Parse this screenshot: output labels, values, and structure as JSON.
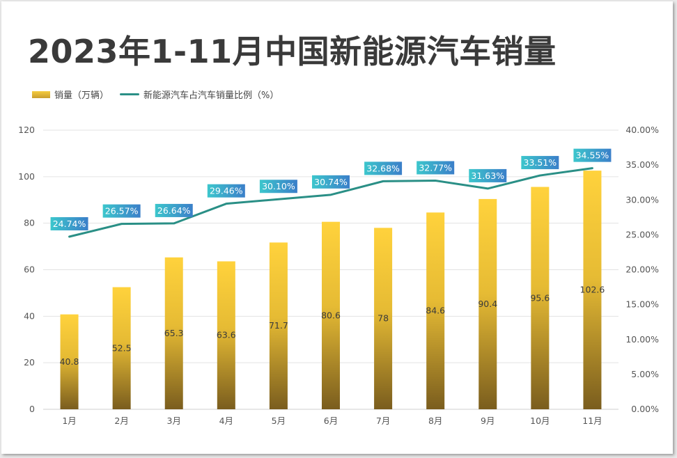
{
  "title": "2023年1-11月中国新能源汽车销量",
  "colors": {
    "bar_top": "#ffd23c",
    "bar_bottom": "#7a5d1e",
    "line": "#2a8f86",
    "label_bg_left": "#3cc6cc",
    "label_bg_right": "#3b7fc9",
    "grid": "#e3e3e3",
    "axis_text": "#555555"
  },
  "chart_data": {
    "type": "bar+line",
    "categories": [
      "1月",
      "2月",
      "3月",
      "4月",
      "5月",
      "6月",
      "7月",
      "8月",
      "9月",
      "10月",
      "11月"
    ],
    "series": [
      {
        "name": "销量（万辆）",
        "type": "bar",
        "axis": "left",
        "values": [
          40.8,
          52.5,
          65.3,
          63.6,
          71.7,
          80.6,
          78,
          84.6,
          90.4,
          95.6,
          102.6
        ],
        "labels": [
          "40.8",
          "52.5",
          "65.3",
          "63.6",
          "71.7",
          "80.6",
          "78",
          "84.6",
          "90.4",
          "95.6",
          "102.6"
        ]
      },
      {
        "name": "新能源汽车占汽车销量比例（%）",
        "type": "line",
        "axis": "right",
        "values": [
          24.74,
          26.57,
          26.64,
          29.46,
          30.1,
          30.74,
          32.68,
          32.77,
          31.63,
          33.51,
          34.55
        ],
        "labels": [
          "24.74%",
          "26.57%",
          "26.64%",
          "29.46%",
          "30.10%",
          "30.74%",
          "32.68%",
          "32.77%",
          "31.63%",
          "33.51%",
          "34.55%"
        ]
      }
    ],
    "y_left": {
      "min": 0,
      "max": 120,
      "ticks": [
        "0",
        "20",
        "40",
        "60",
        "80",
        "100",
        "120"
      ],
      "tick_values": [
        0,
        20,
        40,
        60,
        80,
        100,
        120
      ]
    },
    "y_right": {
      "min": 0,
      "max": 40,
      "ticks": [
        "0.00%",
        "5.00%",
        "10.00%",
        "15.00%",
        "20.00%",
        "25.00%",
        "30.00%",
        "35.00%",
        "40.00%"
      ],
      "tick_values": [
        0,
        5,
        10,
        15,
        20,
        25,
        30,
        35,
        40
      ]
    },
    "grid": true,
    "legend_position": "top-left"
  }
}
